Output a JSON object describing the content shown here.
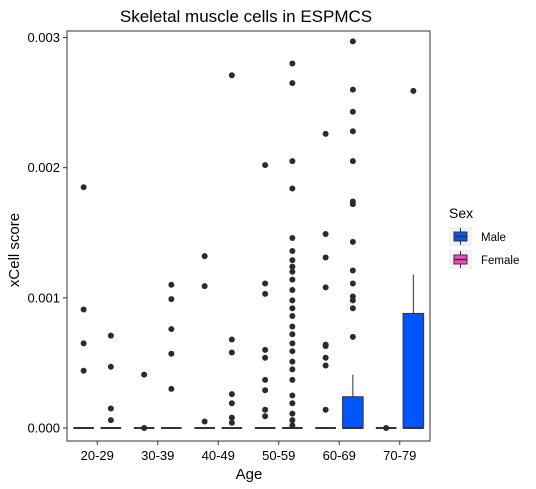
{
  "chart_data": {
    "type": "boxplot",
    "title": "Skeletal muscle cells in ESPMCS",
    "xlabel": "Age",
    "ylabel": "xCell score",
    "categories": [
      "20-29",
      "30-39",
      "40-49",
      "50-59",
      "60-69",
      "70-79"
    ],
    "ylim": [
      -0.0001,
      0.00305
    ],
    "yticks": [
      0.0,
      0.001,
      0.002,
      0.003
    ],
    "ytick_labels": [
      "0.000",
      "0.001",
      "0.002",
      "0.003"
    ],
    "grid": false,
    "legend": {
      "title": "Sex",
      "position": "right",
      "entries": [
        {
          "label": "Male",
          "color": "#0055ff"
        },
        {
          "label": "Female",
          "color": "#ff44cc"
        }
      ]
    },
    "series": [
      {
        "name": "Female",
        "color": "#ff44cc",
        "boxes": [
          {
            "category": "20-29",
            "q1": 0,
            "median": 0,
            "q3": 0,
            "whisker_low": 0,
            "whisker_high": 0,
            "outliers": [
              0.00185,
              0.00091,
              0.00065,
              0.00044
            ]
          },
          {
            "category": "30-39",
            "q1": 0,
            "median": 0,
            "q3": 0,
            "whisker_low": 0,
            "whisker_high": 0,
            "outliers": [
              0.00041,
              0.0
            ]
          },
          {
            "category": "40-49",
            "q1": 0,
            "median": 0,
            "q3": 0,
            "whisker_low": 0,
            "whisker_high": 0,
            "outliers": [
              0.00132,
              0.00109,
              5e-05
            ]
          },
          {
            "category": "50-59",
            "q1": 0,
            "median": 0,
            "q3": 0,
            "whisker_low": 0,
            "whisker_high": 0,
            "outliers": [
              0.00202,
              0.00111,
              0.00103,
              0.0006,
              0.00054,
              0.00037,
              0.00029,
              0.00014,
              9e-05
            ]
          },
          {
            "category": "60-69",
            "q1": 0,
            "median": 0,
            "q3": 0,
            "whisker_low": 0,
            "whisker_high": 0,
            "outliers": [
              0.00226,
              0.00149,
              0.00131,
              0.00108,
              0.00064,
              0.00063,
              0.00054,
              0.00048,
              0.00014
            ]
          },
          {
            "category": "70-79",
            "q1": 0,
            "median": 0,
            "q3": 0,
            "whisker_low": 0,
            "whisker_high": 0,
            "outliers": [
              0.0
            ]
          }
        ]
      },
      {
        "name": "Male",
        "color": "#0055ff",
        "boxes": [
          {
            "category": "20-29",
            "q1": 0,
            "median": 0,
            "q3": 0,
            "whisker_low": 0,
            "whisker_high": 0,
            "outliers": [
              0.00071,
              0.00047,
              0.00015,
              6e-05
            ]
          },
          {
            "category": "30-39",
            "q1": 0,
            "median": 0,
            "q3": 0,
            "whisker_low": 0,
            "whisker_high": 0,
            "outliers": [
              0.0011,
              0.00099,
              0.00076,
              0.00057,
              0.0003
            ]
          },
          {
            "category": "40-49",
            "q1": 0,
            "median": 0,
            "q3": 0,
            "whisker_low": 0,
            "whisker_high": 0,
            "outliers": [
              0.00271,
              0.00068,
              0.00058,
              0.00026,
              0.00019,
              8e-05,
              4e-05
            ]
          },
          {
            "category": "50-59",
            "q1": 0,
            "median": 0,
            "q3": 0,
            "whisker_low": 0,
            "whisker_high": 0,
            "outliers": [
              0.0028,
              0.00265,
              0.00205,
              0.00184,
              0.00146,
              0.00136,
              0.00129,
              0.00124,
              0.0012,
              0.00114,
              0.00106,
              0.00098,
              0.00092,
              0.00086,
              0.00078,
              0.00072,
              0.00065,
              0.00059,
              0.00051,
              0.00045,
              0.00037,
              0.00025,
              0.00019,
              0.00011,
              6e-05,
              2e-05
            ]
          },
          {
            "category": "60-69",
            "q1": 0,
            "median": 0,
            "q3": 0.00024,
            "whisker_low": 0,
            "whisker_high": 0.00041,
            "outliers": [
              0.00297,
              0.0026,
              0.00243,
              0.00228,
              0.00205,
              0.00174,
              0.00172,
              0.00143,
              0.00121,
              0.00111,
              0.00101,
              0.00098,
              0.00092,
              0.0007
            ]
          },
          {
            "category": "70-79",
            "q1": 0,
            "median": 0,
            "q3": 0.00088,
            "whisker_low": 0,
            "whisker_high": 0.00118,
            "outliers": [
              0.00259
            ]
          }
        ]
      }
    ]
  }
}
